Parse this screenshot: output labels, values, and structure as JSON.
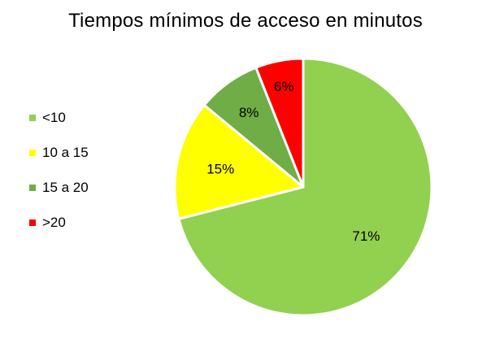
{
  "chart_data": {
    "type": "pie",
    "title": "Tiempos mínimos de acceso en minutos",
    "categories": [
      "<10",
      "10 a 15",
      "15 a 20",
      ">20"
    ],
    "values": [
      71,
      15,
      8,
      6
    ],
    "labels": [
      "71%",
      "15%",
      "8%",
      "6%"
    ],
    "colors": [
      "#92d050",
      "#ffff00",
      "#70ad47",
      "#ff0000"
    ],
    "start_angle_deg": 0,
    "direction": "clockwise",
    "legend_position": "left"
  }
}
